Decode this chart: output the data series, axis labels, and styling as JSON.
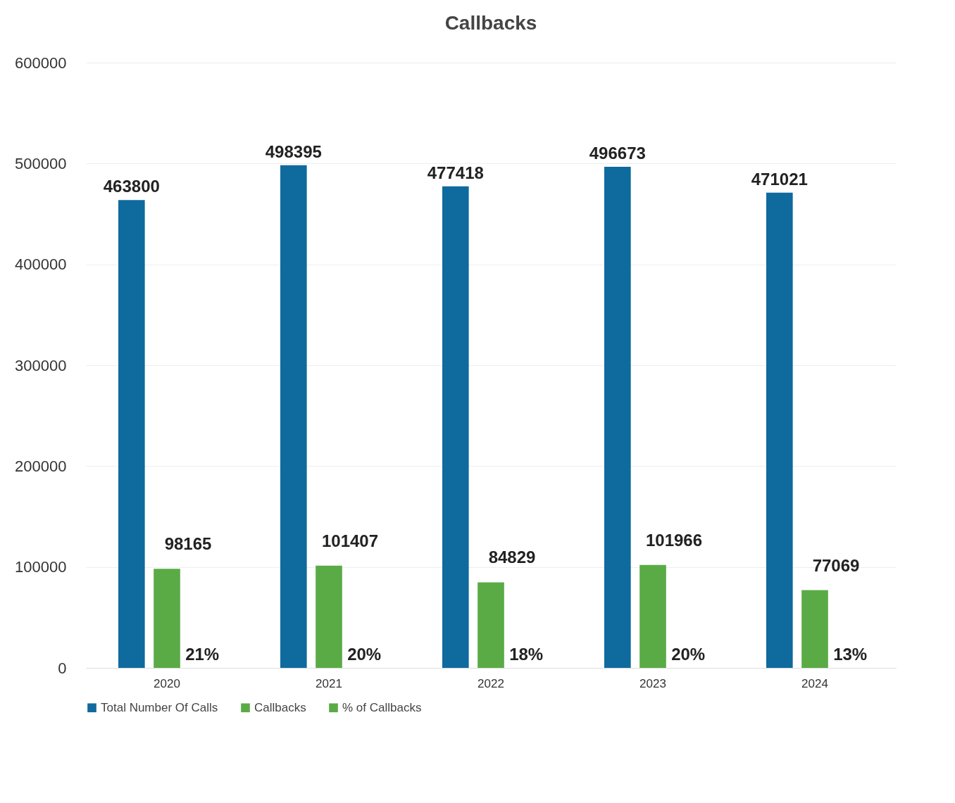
{
  "chart_data": {
    "type": "bar",
    "title": "Callbacks",
    "categories": [
      "2020",
      "2021",
      "2022",
      "2023",
      "2024"
    ],
    "series": [
      {
        "name": "Total Number Of Calls",
        "color": "#0f6a9e",
        "values": [
          463800,
          498395,
          477418,
          496673,
          471021
        ],
        "value_labels": [
          "463800",
          "498395",
          "477418",
          "496673",
          "471021"
        ]
      },
      {
        "name": "Callbacks",
        "color": "#5aab46",
        "values": [
          98165,
          101407,
          84829,
          101966,
          77069
        ],
        "value_labels": [
          "98165",
          "101407",
          "84829",
          "101966",
          "77069"
        ]
      },
      {
        "name": "% of Callbacks",
        "color": "#5aab46",
        "values": [
          21,
          20,
          18,
          20,
          13
        ],
        "value_labels": [
          "21%",
          "20%",
          "18%",
          "20%",
          "13%"
        ]
      }
    ],
    "ylim": [
      0,
      600000
    ],
    "yticks": [
      0,
      100000,
      200000,
      300000,
      400000,
      500000,
      600000
    ],
    "grid": "y",
    "legend": "bottom"
  }
}
